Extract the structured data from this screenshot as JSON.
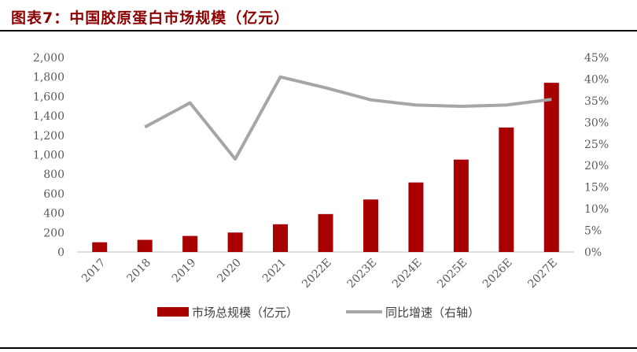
{
  "title": "图表7：中国胶原蛋白市场规模（亿元）",
  "chart_data": {
    "type": "bar",
    "categories": [
      "2017",
      "2018",
      "2019",
      "2020",
      "2021",
      "2022E",
      "2023E",
      "2024E",
      "2025E",
      "2026E",
      "2027E"
    ],
    "series": [
      {
        "name": "市场总规模（亿元）",
        "type": "bar",
        "axis": "left",
        "color": "#a80000",
        "values": [
          100,
          125,
          165,
          200,
          285,
          390,
          540,
          715,
          950,
          1280,
          1740
        ]
      },
      {
        "name": "同比增速（右轴）",
        "type": "line",
        "axis": "right",
        "color": "#a6a6a6",
        "values": [
          null,
          0.289,
          0.345,
          0.215,
          0.405,
          0.38,
          0.352,
          0.34,
          0.337,
          0.34,
          0.353
        ]
      }
    ],
    "y_left": {
      "min": 0,
      "max": 2000,
      "ticks": [
        "0",
        "200",
        "400",
        "600",
        "800",
        "1,000",
        "1,200",
        "1,400",
        "1,600",
        "1,800",
        "2,000"
      ]
    },
    "y_right": {
      "min": 0,
      "max": 0.45,
      "ticks": [
        "0%",
        "5%",
        "10%",
        "15%",
        "20%",
        "25%",
        "30%",
        "35%",
        "40%",
        "45%"
      ]
    },
    "grid": false,
    "legend_position": "bottom"
  }
}
